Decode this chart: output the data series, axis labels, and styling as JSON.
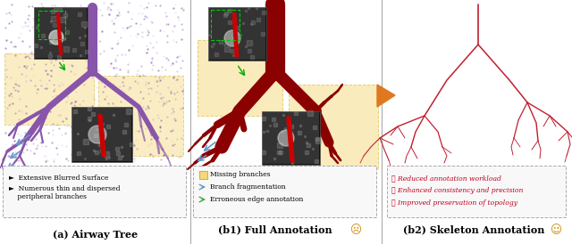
{
  "panel_a_title": "(a) Airway Tree",
  "panel_b1_title": "(b1) Full Annotation",
  "panel_b2_title": "(b2) Skeleton Annotation",
  "panel_a_bullets": [
    "►  Extensive Blurred Surface",
    "►  Numerous thin and dispersed\n    peripheral branches"
  ],
  "panel_b1_legend": [
    "Missing branches",
    "Branch fragmentation",
    "Erroneous edge annotation"
  ],
  "panel_b2_bullets": [
    "✓ Reduced annotation workload",
    "✓ Enhanced consistency and precision",
    "✓ Improved preservation of topology"
  ],
  "bg_color": "#ffffff",
  "yellow_highlight": "#f5d87a",
  "arrow_color": "#e07820",
  "panel_b2_text_color": "#c00020",
  "panel_a_text_color": "#000000",
  "divider_color": "#aaaaaa",
  "purple": "#8855aa",
  "dark_red": "#8b0000",
  "sk_red": "#c02030",
  "blue_arrow": "#6699cc"
}
